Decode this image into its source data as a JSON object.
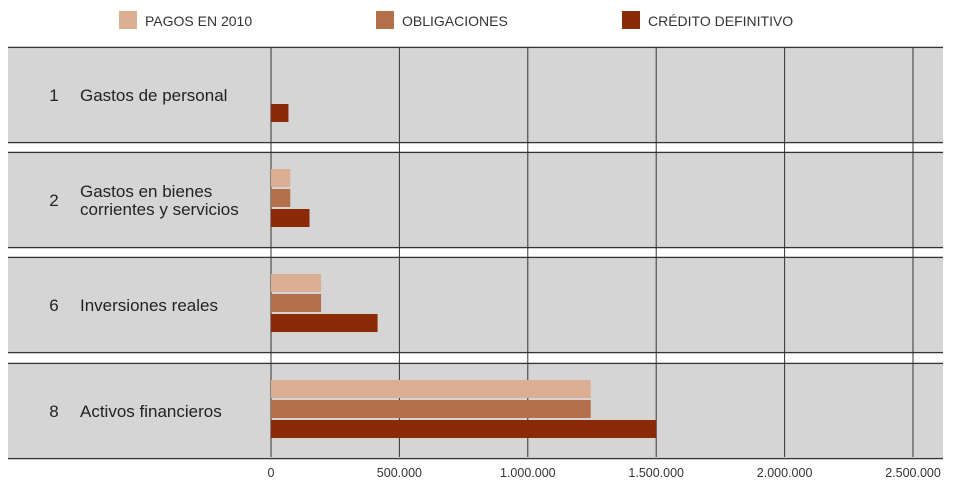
{
  "chart_data": {
    "type": "bar",
    "orientation": "horizontal",
    "categories": [
      {
        "num": "1",
        "label": [
          "Gastos de personal"
        ]
      },
      {
        "num": "2",
        "label": [
          "Gastos en bienes",
          "corrientes y servicios"
        ]
      },
      {
        "num": "6",
        "label": [
          "Inversiones reales"
        ]
      },
      {
        "num": "8",
        "label": [
          "Activos financieros"
        ]
      }
    ],
    "series": [
      {
        "name": "PAGOS EN 2010",
        "color": "#dcae93",
        "values": [
          0,
          75000,
          195000,
          1245000
        ]
      },
      {
        "name": "OBLIGACIONES",
        "color": "#b4704b",
        "values": [
          0,
          75000,
          195000,
          1245000
        ]
      },
      {
        "name": "CRÉDITO DEFINITIVO",
        "color": "#8b2a06",
        "values": [
          68000,
          150000,
          415000,
          1500000
        ]
      }
    ],
    "xlim": [
      0,
      2500000
    ],
    "ticks": [
      0,
      500000,
      1000000,
      1500000,
      2000000,
      2500000
    ],
    "tick_labels": [
      "0",
      "500.000",
      "1.000.000",
      "1.500.000",
      "2.000.000",
      "2.500.000"
    ],
    "title": "",
    "xlabel": "",
    "ylabel": "",
    "grid": true,
    "legend_position": "top",
    "band_color": "#d5d5d5",
    "grid_color": "#333333"
  }
}
